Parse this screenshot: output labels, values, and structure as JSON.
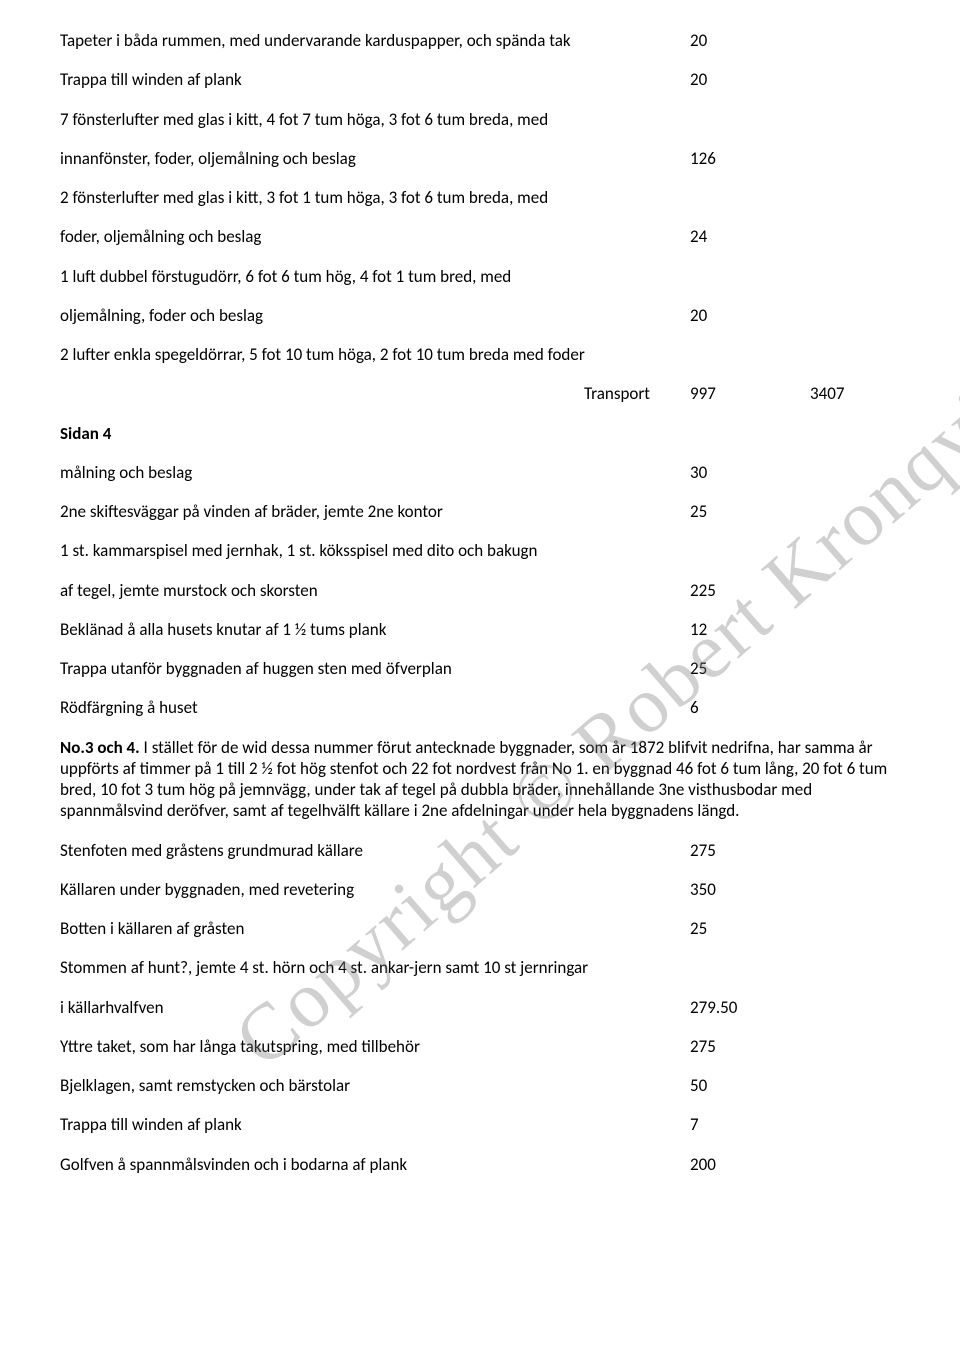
{
  "rows_top": [
    {
      "text": "Tapeter i båda rummen, med undervarande karduspapper, och spända tak",
      "num": "20"
    },
    {
      "text": "Trappa till winden af plank",
      "num": "20"
    },
    {
      "text": "7 fönsterlufter med glas i kitt, 4 fot 7 tum höga, 3 fot 6 tum breda, med",
      "num": ""
    },
    {
      "text": "innanfönster, foder, oljemålning och beslag",
      "num": "126"
    },
    {
      "text": "2 fönsterlufter med glas i kitt, 3 fot 1 tum höga, 3 fot 6 tum breda, med",
      "num": ""
    },
    {
      "text": "foder, oljemålning och beslag",
      "num": "24"
    },
    {
      "text": "1 luft dubbel förstugudörr, 6 fot 6 tum hög, 4 fot 1 tum bred, med",
      "num": ""
    },
    {
      "text": "oljemålning, foder och beslag",
      "num": "20"
    },
    {
      "text": "2 lufter enkla spegeldörrar, 5 fot 10 tum höga, 2 fot 10 tum breda med foder",
      "num": ""
    }
  ],
  "transport": {
    "label": "Transport",
    "n1": "997",
    "n2": "3407"
  },
  "sidan": "Sidan 4",
  "rows_mid": [
    {
      "text": "målning och beslag",
      "num": "30"
    },
    {
      "text": "2ne skiftesväggar på vinden af bräder, jemte 2ne kontor",
      "num": "25"
    },
    {
      "text": "1 st. kammarspisel med jernhak, 1 st. köksspisel med dito och bakugn",
      "num": ""
    },
    {
      "text": "af tegel, jemte murstock och skorsten",
      "num": "225"
    },
    {
      "text": "Beklänad å alla husets knutar af 1 ½ tums plank",
      "num": "12"
    },
    {
      "text": "Trappa utanför byggnaden af huggen sten med öfverplan",
      "num": "25"
    },
    {
      "text": "Rödfärgning å huset",
      "num": "6"
    }
  ],
  "paragraph": {
    "lead": "No.3 och 4.",
    "body": " I stället för de wid dessa nummer förut antecknade byggnader, som år 1872 blifvit nedrifna, har samma år uppförts af timmer på 1 till 2 ½ fot hög stenfot och 22 fot nordvest från No 1. en byggnad 46 fot 6 tum lång, 20 fot 6 tum bred, 10 fot 3 tum hög på jemnvägg, under tak af tegel på dubbla bräder, innehållande 3ne visthusbodar med spannmålsvind deröfver, samt af tegelhvälft källare i 2ne afdelningar under hela byggnadens längd."
  },
  "rows_bottom": [
    {
      "text": "Stenfoten med gråstens grundmurad källare",
      "num": "275"
    },
    {
      "text": "Källaren under byggnaden, med revetering",
      "num": "350"
    },
    {
      "text": "Botten i källaren af gråsten",
      "num": "25"
    },
    {
      "text": "Stommen af hunt?, jemte 4 st. hörn och 4 st. ankar-jern samt 10 st jernringar",
      "num": ""
    },
    {
      "text": "i källarhvalfven",
      "num": "279.50"
    },
    {
      "text": "Yttre taket, som har långa takutspring, med tillbehör",
      "num": "275"
    },
    {
      "text": "Bjelklagen, samt remstycken och bärstolar",
      "num": "50"
    },
    {
      "text": "Trappa till winden af plank",
      "num": "7"
    },
    {
      "text": "Golfven å spannmålsvinden och i bodarna af plank",
      "num": "200"
    }
  ],
  "watermark": "Copyright © Robert Kronqvist"
}
